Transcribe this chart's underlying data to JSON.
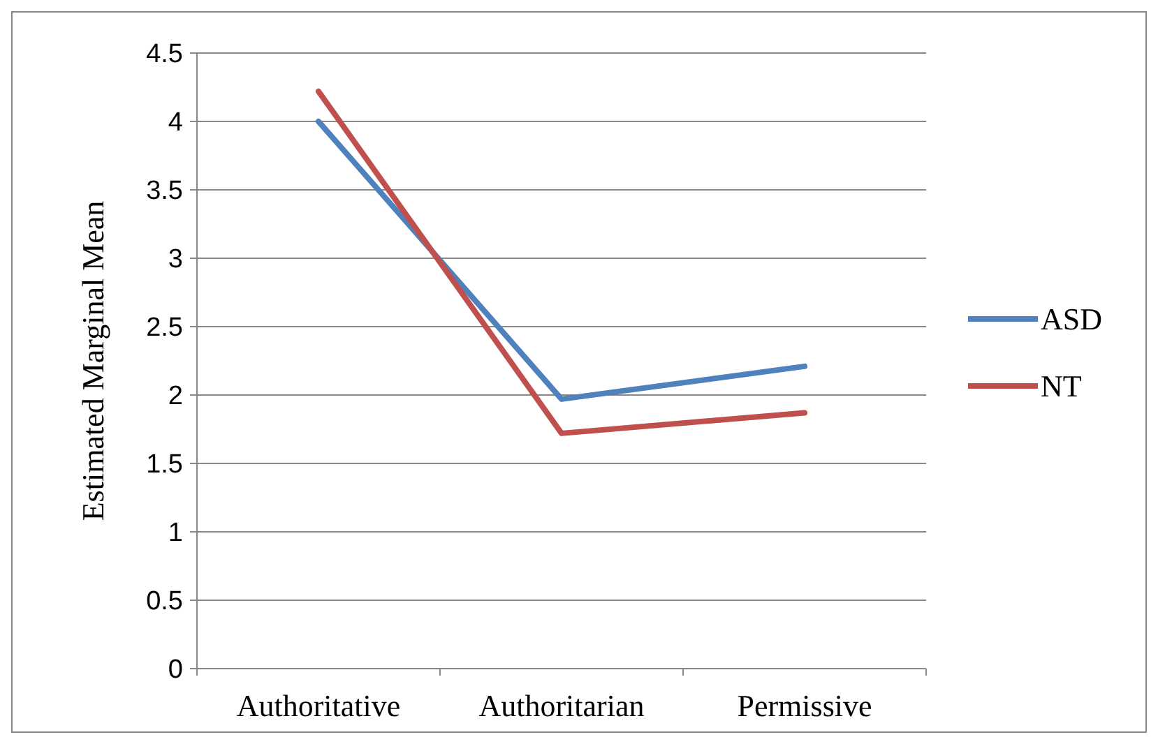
{
  "chart_data": {
    "type": "line",
    "ylabel": "Estimated Marginal Mean",
    "categories": [
      "Authoritative",
      "Authoritarian",
      "Permissive"
    ],
    "series": [
      {
        "name": "ASD",
        "color": "#4f81bd",
        "values": [
          4.0,
          1.97,
          2.21
        ]
      },
      {
        "name": "NT",
        "color": "#c0504d",
        "values": [
          4.22,
          1.72,
          1.87
        ]
      }
    ],
    "ylim": [
      0,
      4.5
    ],
    "yticks": [
      0,
      0.5,
      1,
      1.5,
      2,
      2.5,
      3,
      3.5,
      4,
      4.5
    ],
    "grid": "y",
    "legend": "right",
    "marker": "none",
    "line_style": "solid"
  }
}
